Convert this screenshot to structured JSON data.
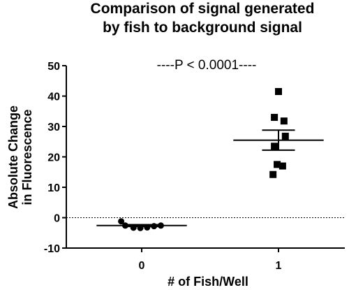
{
  "chart_data": {
    "type": "scatter",
    "title_line1": "Comparison of signal generated",
    "title_line2": "by fish to background signal",
    "ylabel_line1": "Absolute Change",
    "ylabel_line2": "in  Fluorescence",
    "xlabel": "# of Fish/Well",
    "annotation": "----P < 0.0001----",
    "ylim": [
      -10,
      50
    ],
    "yticks": [
      -10,
      0,
      10,
      20,
      30,
      40,
      50
    ],
    "reference_line_y": 0,
    "reference_line_style": "dotted",
    "grid": false,
    "categories": [
      "0",
      "1"
    ],
    "groups": [
      {
        "category": "0",
        "marker": "circle",
        "points": [
          {
            "x": -0.15,
            "y": -1.2
          },
          {
            "x": -0.12,
            "y": -2.6
          },
          {
            "x": -0.06,
            "y": -3.3
          },
          {
            "x": -0.01,
            "y": -3.4
          },
          {
            "x": 0.04,
            "y": -3.2
          },
          {
            "x": 0.09,
            "y": -2.8
          },
          {
            "x": 0.14,
            "y": -2.6
          }
        ],
        "mean": -2.6,
        "error_upper": -2.3,
        "error_lower": -2.9
      },
      {
        "category": "1",
        "marker": "square",
        "points": [
          {
            "x": 0.0,
            "y": 41.5
          },
          {
            "x": -0.03,
            "y": 33.0
          },
          {
            "x": 0.04,
            "y": 31.8
          },
          {
            "x": 0.05,
            "y": 26.8
          },
          {
            "x": -0.03,
            "y": 23.5
          },
          {
            "x": -0.01,
            "y": 17.5
          },
          {
            "x": 0.03,
            "y": 17.0
          },
          {
            "x": -0.04,
            "y": 14.2
          }
        ],
        "mean": 25.5,
        "error_upper": 28.8,
        "error_lower": 22.2
      }
    ],
    "colors": {
      "marker": "#000000",
      "axis": "#000000"
    }
  }
}
